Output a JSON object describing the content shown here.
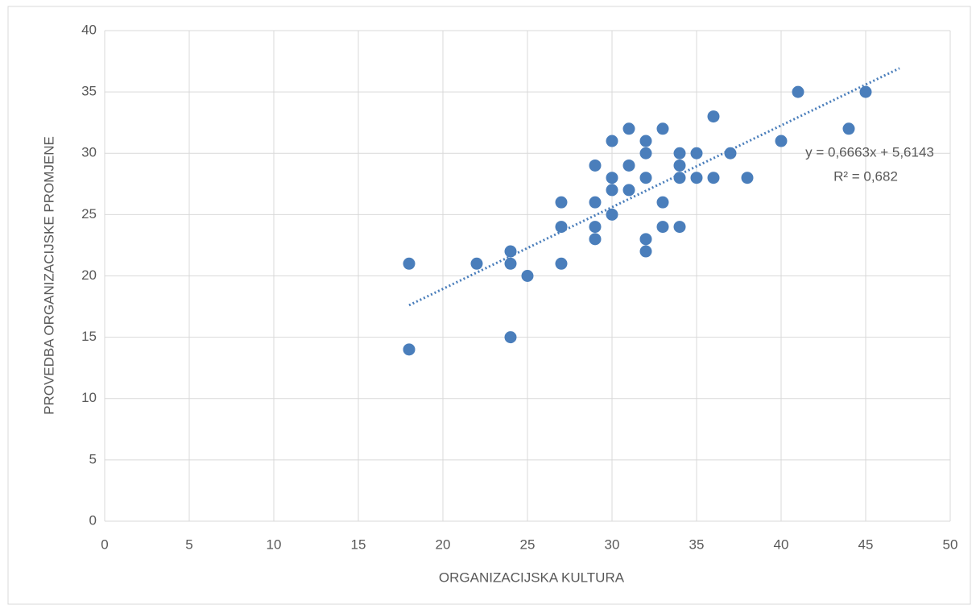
{
  "chart_data": {
    "type": "scatter",
    "x_label": "ORGANIZACIJSKA KULTURA",
    "y_label": "PROVEDBA ORGANIZACIJSKE PROMJENE",
    "series": [
      {
        "color": "#4a7ebb",
        "x": [
          18,
          18,
          22,
          24,
          24,
          24,
          25,
          27,
          27,
          27,
          29,
          29,
          29,
          29,
          30,
          30,
          30,
          30,
          31,
          31,
          31,
          32,
          32,
          32,
          32,
          32,
          33,
          33,
          33,
          34,
          34,
          34,
          34,
          35,
          35,
          36,
          36,
          37,
          38,
          40,
          41,
          44,
          45
        ],
        "values": [
          21,
          14,
          21,
          22,
          21,
          15,
          20,
          26,
          24,
          21,
          29,
          26,
          24,
          23,
          31,
          28,
          27,
          25,
          32,
          29,
          27,
          31,
          30,
          28,
          23,
          22,
          32,
          26,
          24,
          30,
          29,
          28,
          24,
          30,
          28,
          33,
          28,
          30,
          28,
          31,
          35,
          32,
          35
        ]
      }
    ],
    "trendline": {
      "equation": "y = 0,6663x + 5,6143",
      "r_squared": "R² = 0,682",
      "slope": 0.6663,
      "intercept": 5.6143,
      "x_range": [
        18,
        47
      ],
      "color": "#4a7ebb"
    },
    "xlim": [
      0,
      50
    ],
    "xticks": [
      0,
      5,
      10,
      15,
      20,
      25,
      30,
      35,
      40,
      45,
      50
    ],
    "ylim": [
      0,
      40
    ],
    "yticks": [
      0,
      5,
      10,
      15,
      20,
      25,
      30,
      35,
      40
    ],
    "grid": true
  }
}
